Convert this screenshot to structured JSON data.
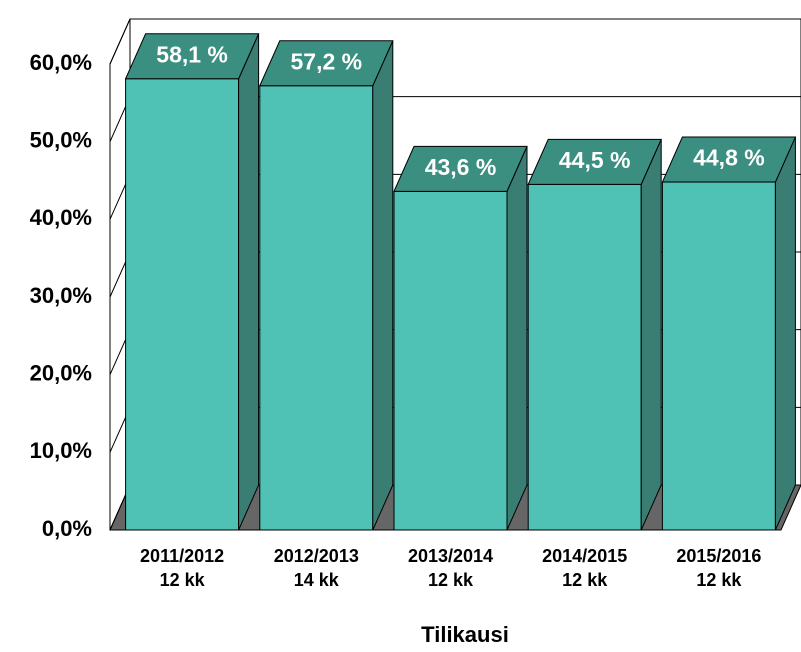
{
  "chart_data": {
    "type": "bar3d",
    "x_label": "Tilikausi",
    "categories": [
      [
        "2011/2012",
        "12 kk"
      ],
      [
        "2012/2013",
        "14 kk"
      ],
      [
        "2013/2014",
        "12 kk"
      ],
      [
        "2014/2015",
        "12 kk"
      ],
      [
        "2015/2016",
        "12 kk"
      ]
    ],
    "values": [
      58.1,
      57.2,
      43.6,
      44.5,
      44.8
    ],
    "value_labels": [
      "58,1 %",
      "57,2 %",
      "43,6 %",
      "44,5 %",
      "44,8 %"
    ],
    "color": "#4fc1b5",
    "ylim": [
      0,
      60
    ],
    "yticks": [
      {
        "value": 0,
        "label": "0,0%"
      },
      {
        "value": 10,
        "label": "10,0%"
      },
      {
        "value": 20,
        "label": "20,0%"
      },
      {
        "value": 30,
        "label": "30,0%"
      },
      {
        "value": 40,
        "label": "40,0%"
      },
      {
        "value": 50,
        "label": "50,0%"
      },
      {
        "value": 60,
        "label": "60,0%"
      }
    ],
    "grid": true
  }
}
